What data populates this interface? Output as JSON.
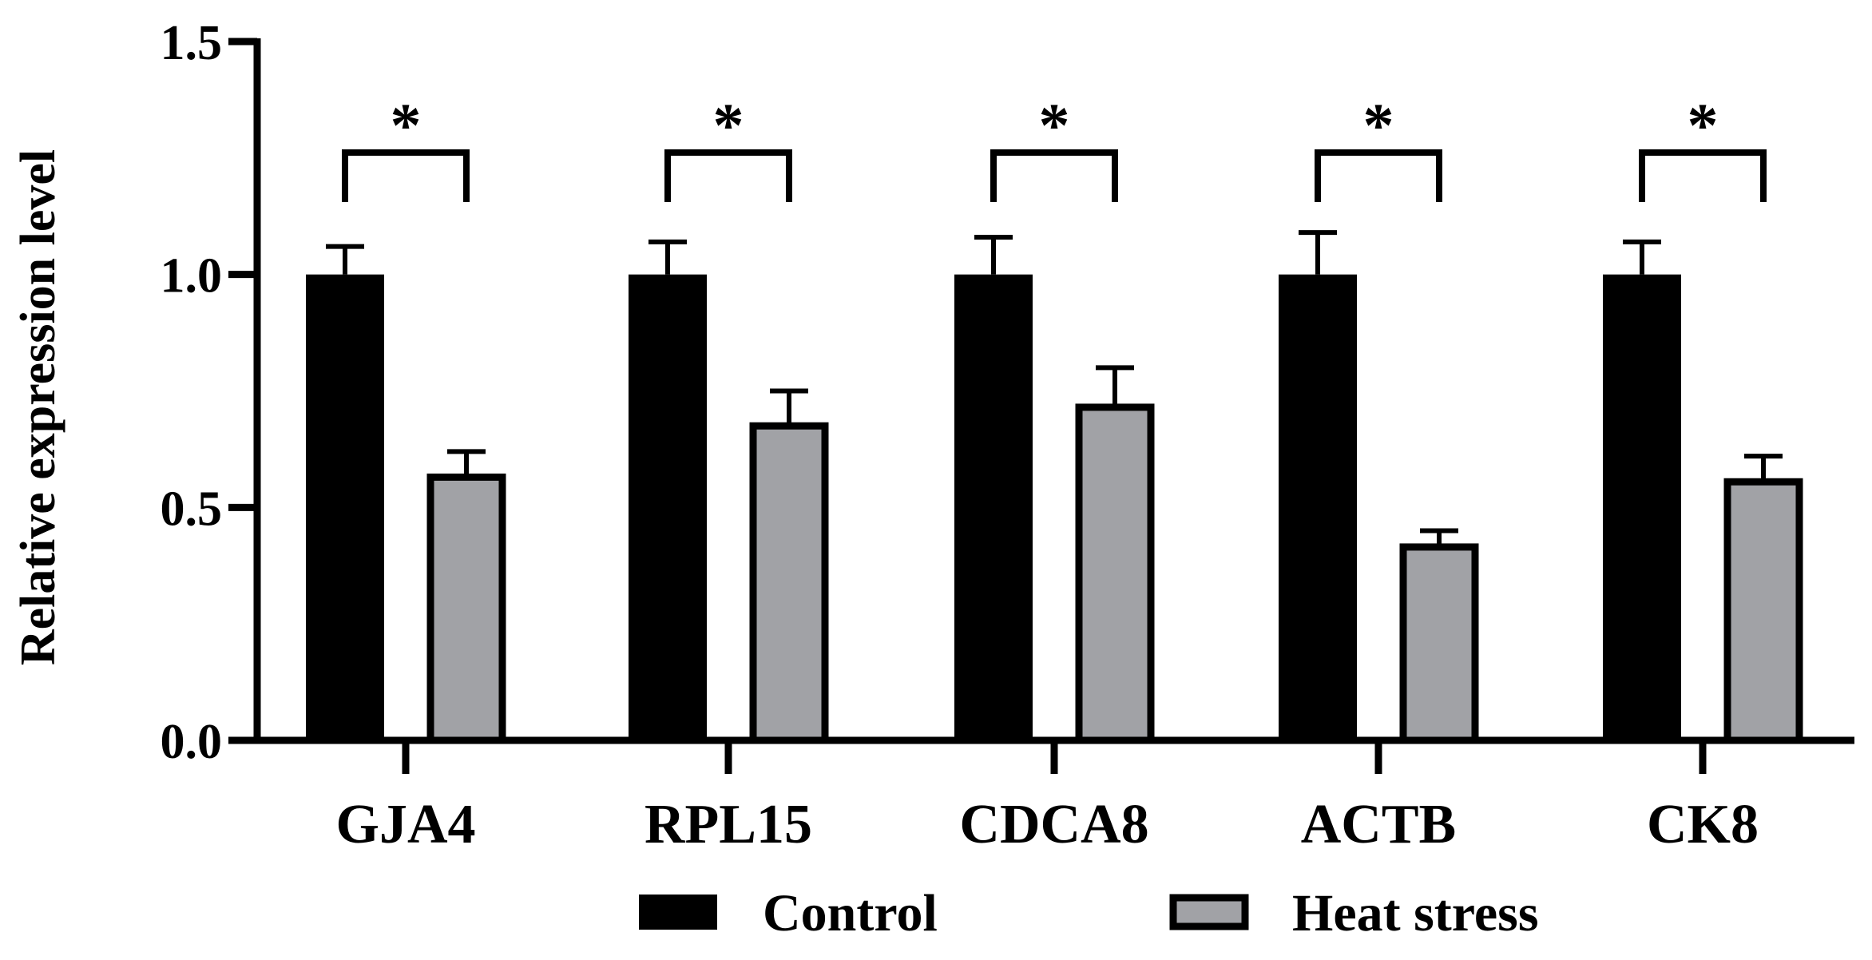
{
  "colors": {
    "control": "#000000",
    "heat_stress": "#a1a2a6",
    "axis": "#000000",
    "background": "#ffffff"
  },
  "chart_data": {
    "type": "bar",
    "title": "",
    "xlabel": "",
    "ylabel": "Relative expression level",
    "ylim": [
      0,
      1.5
    ],
    "yticks": [
      0.0,
      0.5,
      1.0,
      1.5
    ],
    "ytick_labels": [
      "0.0",
      "0.5",
      "1.0",
      "1.5"
    ],
    "categories": [
      "GJA4",
      "RPL15",
      "CDCA8",
      "ACTB",
      "CK8"
    ],
    "series": [
      {
        "name": "Control",
        "color": "#000000",
        "values": [
          1.0,
          1.0,
          1.0,
          1.0,
          1.0
        ],
        "errors": [
          0.06,
          0.07,
          0.08,
          0.09,
          0.07
        ]
      },
      {
        "name": "Heat stress",
        "color": "#a1a2a6",
        "values": [
          0.565,
          0.675,
          0.715,
          0.415,
          0.555
        ],
        "errors": [
          0.055,
          0.075,
          0.085,
          0.035,
          0.055
        ]
      }
    ],
    "significance": [
      {
        "category": "GJA4",
        "label": "*"
      },
      {
        "category": "RPL15",
        "label": "*"
      },
      {
        "category": "CDCA8",
        "label": "*"
      },
      {
        "category": "ACTB",
        "label": "*"
      },
      {
        "category": "CK8",
        "label": "*"
      }
    ],
    "significance_bracket_y": 1.2,
    "legend": {
      "position": "bottom",
      "entries": [
        "Control",
        "Heat stress"
      ]
    },
    "grid": false
  }
}
